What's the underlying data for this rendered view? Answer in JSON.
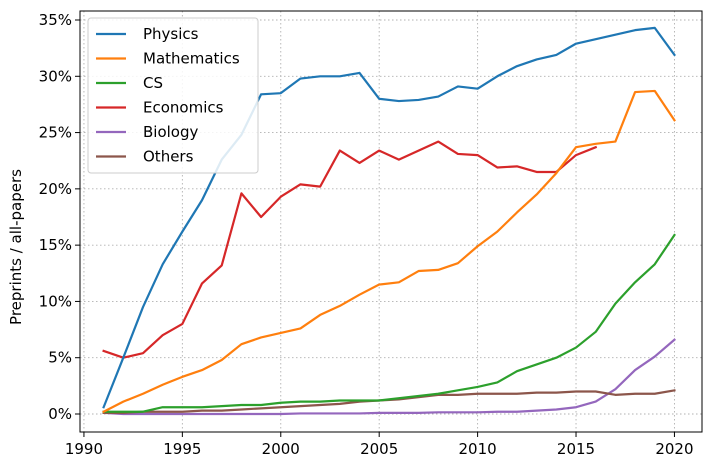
{
  "chart_data": {
    "type": "line",
    "title": "",
    "xlabel": "",
    "ylabel": "Preprints / all-papers",
    "xlim": [
      1989.8,
      2021.4
    ],
    "ylim": [
      -1.6,
      35.8
    ],
    "xticks": [
      1990,
      1995,
      2000,
      2005,
      2010,
      2015,
      2020
    ],
    "xtick_labels": [
      "1990",
      "1995",
      "2000",
      "2005",
      "2010",
      "2015",
      "2020"
    ],
    "yticks": [
      0,
      5,
      10,
      15,
      20,
      25,
      30,
      35
    ],
    "ytick_labels": [
      "0%",
      "5%",
      "10%",
      "15%",
      "20%",
      "25%",
      "30%",
      "35%"
    ],
    "grid": true,
    "legend_position": "top-left",
    "series": [
      {
        "name": "Physics",
        "color": "#1f77b4",
        "x": [
          1991,
          1992,
          1993,
          1994,
          1995,
          1996,
          1997,
          1998,
          1999,
          2000,
          2001,
          2002,
          2003,
          2004,
          2005,
          2006,
          2007,
          2008,
          2009,
          2010,
          2011,
          2012,
          2013,
          2014,
          2015,
          2016,
          2017,
          2018,
          2019,
          2020
        ],
        "values": [
          0.6,
          5.0,
          9.5,
          13.3,
          16.2,
          19.0,
          22.6,
          24.8,
          28.4,
          28.5,
          29.8,
          30.0,
          30.0,
          30.3,
          28.0,
          27.8,
          27.9,
          28.2,
          29.1,
          28.9,
          30.0,
          30.9,
          31.5,
          31.9,
          32.9,
          33.3,
          33.7,
          34.1,
          34.3,
          31.9
        ]
      },
      {
        "name": "Mathematics",
        "color": "#ff7f0e",
        "x": [
          1991,
          1992,
          1993,
          1994,
          1995,
          1996,
          1997,
          1998,
          1999,
          2000,
          2001,
          2002,
          2003,
          2004,
          2005,
          2006,
          2007,
          2008,
          2009,
          2010,
          2011,
          2012,
          2013,
          2014,
          2015,
          2016,
          2017,
          2018,
          2019,
          2020
        ],
        "values": [
          0.2,
          1.1,
          1.8,
          2.6,
          3.3,
          3.9,
          4.8,
          6.2,
          6.8,
          7.2,
          7.6,
          8.8,
          9.6,
          10.6,
          11.5,
          11.7,
          12.7,
          12.8,
          13.4,
          14.9,
          16.2,
          17.9,
          19.5,
          21.4,
          23.7,
          24.0,
          24.2,
          28.6,
          28.7,
          26.1
        ]
      },
      {
        "name": "CS",
        "color": "#2ca02c",
        "x": [
          1991,
          1992,
          1993,
          1994,
          1995,
          1996,
          1997,
          1998,
          1999,
          2000,
          2001,
          2002,
          2003,
          2004,
          2005,
          2006,
          2007,
          2008,
          2009,
          2010,
          2011,
          2012,
          2013,
          2014,
          2015,
          2016,
          2017,
          2018,
          2019,
          2020
        ],
        "values": [
          0.2,
          0.2,
          0.2,
          0.6,
          0.6,
          0.6,
          0.7,
          0.8,
          0.8,
          1.0,
          1.1,
          1.1,
          1.2,
          1.2,
          1.2,
          1.4,
          1.6,
          1.8,
          2.1,
          2.4,
          2.8,
          3.8,
          4.4,
          5.0,
          5.9,
          7.3,
          9.8,
          11.7,
          13.3,
          15.9
        ]
      },
      {
        "name": "Economics",
        "color": "#d62728",
        "x": [
          1991,
          1992,
          1993,
          1994,
          1995,
          1996,
          1997,
          1998,
          1999,
          2000,
          2001,
          2002,
          2003,
          2004,
          2005,
          2006,
          2007,
          2008,
          2009,
          2010,
          2011,
          2012,
          2013,
          2014,
          2015,
          2016
        ],
        "values": [
          5.6,
          5.0,
          5.4,
          7.0,
          8.0,
          11.6,
          13.2,
          19.6,
          17.5,
          19.3,
          20.4,
          20.2,
          23.4,
          22.3,
          23.4,
          22.6,
          23.4,
          24.2,
          23.1,
          23.0,
          21.9,
          22.0,
          21.5,
          21.5,
          23.0,
          23.7
        ]
      },
      {
        "name": "Biology",
        "color": "#9467bd",
        "x": [
          1991,
          1992,
          1993,
          1994,
          1995,
          1996,
          1997,
          1998,
          1999,
          2000,
          2001,
          2002,
          2003,
          2004,
          2005,
          2006,
          2007,
          2008,
          2009,
          2010,
          2011,
          2012,
          2013,
          2014,
          2015,
          2016,
          2017,
          2018,
          2019,
          2020
        ],
        "values": [
          0.1,
          0.0,
          0.0,
          0.0,
          0.0,
          0.0,
          0.0,
          0.0,
          0.0,
          0.0,
          0.05,
          0.05,
          0.05,
          0.05,
          0.1,
          0.1,
          0.1,
          0.15,
          0.15,
          0.15,
          0.2,
          0.2,
          0.3,
          0.4,
          0.6,
          1.1,
          2.2,
          3.9,
          5.1,
          6.6
        ]
      },
      {
        "name": "Others",
        "color": "#8c564b",
        "x": [
          1991,
          1992,
          1993,
          1994,
          1995,
          1996,
          1997,
          1998,
          1999,
          2000,
          2001,
          2002,
          2003,
          2004,
          2005,
          2006,
          2007,
          2008,
          2009,
          2010,
          2011,
          2012,
          2013,
          2014,
          2015,
          2016,
          2017,
          2018,
          2019,
          2020
        ],
        "values": [
          0.1,
          0.1,
          0.2,
          0.2,
          0.2,
          0.3,
          0.3,
          0.4,
          0.5,
          0.6,
          0.7,
          0.8,
          0.9,
          1.1,
          1.2,
          1.3,
          1.5,
          1.7,
          1.7,
          1.8,
          1.8,
          1.8,
          1.9,
          1.9,
          2.0,
          2.0,
          1.7,
          1.8,
          1.8,
          2.1
        ]
      }
    ]
  }
}
